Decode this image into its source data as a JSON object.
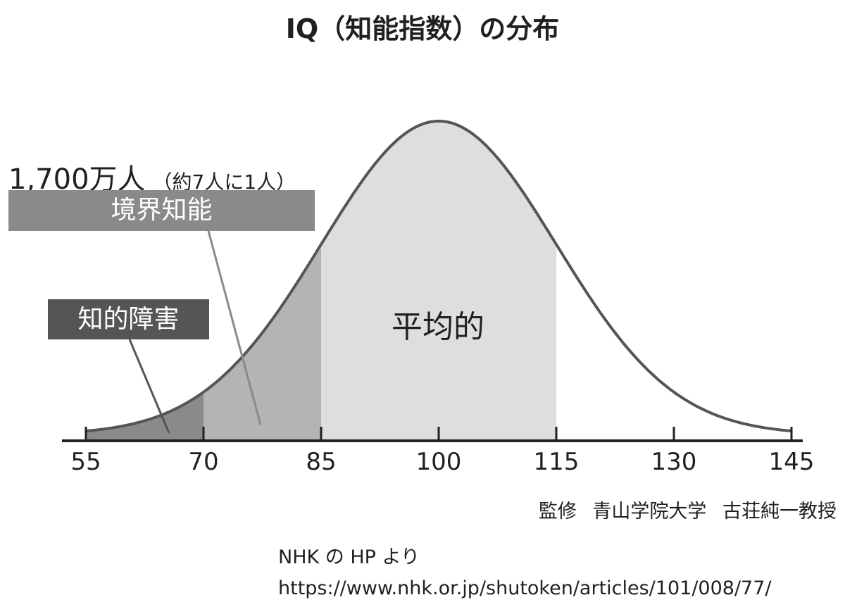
{
  "chart_data": {
    "type": "area",
    "title": "IQ（知能指数）の分布",
    "distribution": {
      "mean": 100,
      "sd": 15
    },
    "xlim": [
      55,
      145
    ],
    "x_ticks": [
      55,
      70,
      85,
      100,
      115,
      130,
      145
    ],
    "x_tick_labels": [
      "55",
      "70",
      "85",
      "100",
      "115",
      "130",
      "145"
    ],
    "regions": [
      {
        "label": "知的障害",
        "range": [
          55,
          70
        ],
        "color": "#8a8a8a"
      },
      {
        "label": "境界知能",
        "range": [
          70,
          85
        ],
        "color": "#b4b4b4"
      },
      {
        "label": "平均的",
        "range": [
          85,
          115
        ],
        "color": "#dedede"
      }
    ],
    "curve_color": "#555555",
    "annotations": {
      "borderline_count": "1,700万人",
      "borderline_ratio": "（約7人に1人）"
    },
    "grid": false
  },
  "credit": "監修 青山学院大学 古荘純一教授",
  "source": {
    "line1": "NHK の HP より",
    "line2": "https://www.nhk.or.jp/shutoken/articles/101/008/77/"
  }
}
